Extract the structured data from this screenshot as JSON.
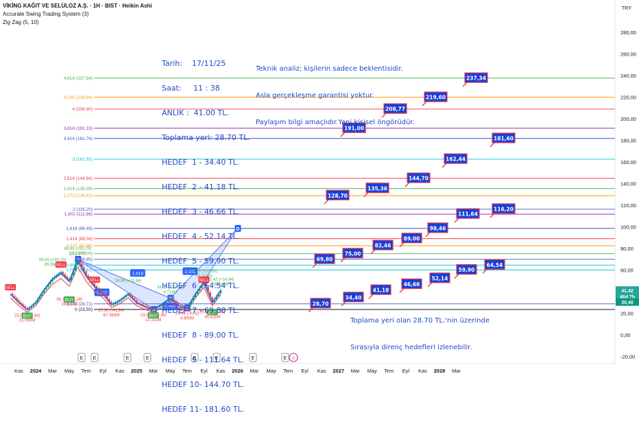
{
  "header": {
    "title": "VİKİNG KAĞIT VE SELÜLOZ A.Ş. · 1H · BIST · Heikin Ashi",
    "indicator1": "Accurate Swing Trading System (3)",
    "indicator2": "Zig Zag (5, 10)",
    "currency": "TRY"
  },
  "info_block": {
    "date": "Tarih:    17/11/25",
    "time": "Saat:     11 : 38",
    "now": "ANLIK :  41.00 TL.",
    "collect": "Toplama yeri: 28.70 TL.",
    "targets": [
      "HEDEF  1 - 34.40 TL.",
      "HEDEF  2 - 41.18 TL.",
      "HEDEF  3 - 46.66 TL.",
      "HEDEF  4 - 52.14 TL.",
      "HEDEF  5 - 59.90 TL.",
      "HEDEF  6 - 64.54 TL.",
      "HEDEF  7 - 69.80 TL.",
      "HEDEF  8 - 89.00 TL.",
      "HEDEF  9 - 111.64 TL.",
      "HEDEF 10- 144.70 TL.",
      "HEDEF 11- 181.60 TL."
    ]
  },
  "disclaimer": [
    "Teknik analiz; kişilerin sadece beklentisidir.",
    "Asla gerçekleşme garantisi yoktur.",
    "Paylaşım bilgi amaçlıdır.Yani kişisel öngörüdür."
  ],
  "bottom_note": [
    "Toplama yeri olan 28.70 TL.'nin üzerinde",
    "Sırasıyla direnç hedefleri izlenebilir."
  ],
  "chart_data": {
    "type": "line",
    "title": "VİKİNG KAĞIT VE SELÜLOZ A.Ş. · 1H · BIST · Heikin Ashi",
    "ylim": [
      -20,
      300
    ],
    "y_ticks": [
      "-20,00",
      "0,00",
      "20,00",
      "40,00",
      "60,00",
      "80,00",
      "100,00",
      "120,00",
      "140,00",
      "160,00",
      "180,00",
      "200,00",
      "220,00",
      "240,00",
      "260,00",
      "280,00"
    ],
    "x_ticks": [
      "Kas",
      "2024",
      "Mar",
      "May",
      "Tem",
      "Eyl",
      "Kas",
      "2025",
      "Mar",
      "May",
      "Tem",
      "Eyl",
      "Kas",
      "2026",
      "Mar",
      "May",
      "Tem",
      "Eyl",
      "Kas",
      "2027",
      "Mar",
      "May",
      "Tem",
      "Eyl",
      "Kas",
      "2028",
      "Mar"
    ],
    "price_labels": [
      {
        "text": "41,42",
        "value": 41.42,
        "color": "#26a69a"
      },
      {
        "text": "46d 7h",
        "value": 35.5,
        "color": "#26a69a"
      },
      {
        "text": "30,40",
        "value": 30.4,
        "color": "#089981"
      }
    ],
    "fib_levels": [
      {
        "label": "4,618 (237,54)",
        "value": 237.54,
        "color": "#4caf50"
      },
      {
        "label": "4,236 (219,84)",
        "value": 219.84,
        "color": "#ff9800"
      },
      {
        "label": "4 (208,90)",
        "value": 208.9,
        "color": "#f23645"
      },
      {
        "label": "3,618 (191,19)",
        "value": 191.19,
        "color": "#9c27b0"
      },
      {
        "label": "3,414 (181,74)",
        "value": 181.74,
        "color": "#3f51b5"
      },
      {
        "label": "3 (162,55)",
        "value": 162.55,
        "color": "#00bcd4"
      },
      {
        "label": "2,618 (144,84)",
        "value": 144.84,
        "color": "#f23645"
      },
      {
        "label": "2,414 (135,39)",
        "value": 135.39,
        "color": "#4caf50"
      },
      {
        "label": "2,272 (128,81)",
        "value": 128.81,
        "color": "#ff9800"
      },
      {
        "label": "2 (116,20)",
        "value": 116.2,
        "color": "#3f51b5"
      },
      {
        "label": "1,902 (111,66)",
        "value": 111.66,
        "color": "#9c27b0"
      },
      {
        "label": "1,618 (98,49)",
        "value": 98.49,
        "color": "#3f51b5"
      },
      {
        "label": "1,414 (89,04)",
        "value": 89.04,
        "color": "#f23645"
      },
      {
        "label": "1,272 (82,46)",
        "value": 82.46,
        "color": "#ff9800"
      },
      {
        "label": "1,13 (75,09)",
        "value": 75.09,
        "color": "#4caf50"
      },
      {
        "label": "1 (69,85)",
        "value": 69.85,
        "color": "#3f51b5"
      },
      {
        "label": "0,886 (64,57)",
        "value": 64.57,
        "color": "#00bcd4"
      },
      {
        "label": "0,786 (59,93)",
        "value": 59.93,
        "color": "#00bcd4"
      },
      {
        "label": "0,113 (28,71)",
        "value": 28.71,
        "color": "#3f51b5"
      },
      {
        "label": "0 (23,50)",
        "value": 23.5,
        "color": "#131722"
      }
    ],
    "targets": [
      {
        "label": "28,70",
        "value": 28.7
      },
      {
        "label": "34,40",
        "value": 34.4
      },
      {
        "label": "41,18",
        "value": 41.18
      },
      {
        "label": "46,66",
        "value": 46.66
      },
      {
        "label": "52,14",
        "value": 52.14
      },
      {
        "label": "59,90",
        "value": 59.9
      },
      {
        "label": "64,54",
        "value": 64.54
      },
      {
        "label": "69,80",
        "value": 69.8
      },
      {
        "label": "75,00",
        "value": 75.0
      },
      {
        "label": "82,46",
        "value": 82.46
      },
      {
        "label": "89,00",
        "value": 89.0
      },
      {
        "label": "98,46",
        "value": 98.46
      },
      {
        "label": "111,64",
        "value": 111.64
      },
      {
        "label": "116,20",
        "value": 116.2
      },
      {
        "label": "128,70",
        "value": 128.7
      },
      {
        "label": "135,36",
        "value": 135.36
      },
      {
        "label": "144,70",
        "value": 144.7
      },
      {
        "label": "162,44",
        "value": 162.44
      },
      {
        "label": "181,60",
        "value": 181.6
      },
      {
        "label": "191,00",
        "value": 191.0
      },
      {
        "label": "208,77",
        "value": 208.77
      },
      {
        "label": "219,60",
        "value": 219.6
      },
      {
        "label": "237,34",
        "value": 237.34
      }
    ],
    "price_series": [
      {
        "x": "2023-10",
        "y": 38
      },
      {
        "x": "2023-11",
        "y": 30
      },
      {
        "x": "2023-12",
        "y": 23.2
      },
      {
        "x": "2024-01",
        "y": 30
      },
      {
        "x": "2024-02",
        "y": 42
      },
      {
        "x": "2024-03",
        "y": 52
      },
      {
        "x": "2024-04",
        "y": 58
      },
      {
        "x": "2024-05",
        "y": 50
      },
      {
        "x": "2024-06",
        "y": 69.85
      },
      {
        "x": "2024-07",
        "y": 55
      },
      {
        "x": "2024-08",
        "y": 45
      },
      {
        "x": "2024-09",
        "y": 38
      },
      {
        "x": "2024-10",
        "y": 28
      },
      {
        "x": "2024-11",
        "y": 32
      },
      {
        "x": "2024-12",
        "y": 38
      },
      {
        "x": "2025-01",
        "y": 30
      },
      {
        "x": "2025-02",
        "y": 26
      },
      {
        "x": "2025-03",
        "y": 23.5
      },
      {
        "x": "2025-04",
        "y": 28
      },
      {
        "x": "2025-05",
        "y": 34
      },
      {
        "x": "2025-06",
        "y": 27
      },
      {
        "x": "2025-07",
        "y": 25
      },
      {
        "x": "2025-08",
        "y": 38
      },
      {
        "x": "2025-09",
        "y": 48.78
      },
      {
        "x": "2025-10",
        "y": 30
      },
      {
        "x": "2025-11",
        "y": 41.42
      }
    ],
    "pattern_points": [
      {
        "label": "X",
        "x": "2024-06",
        "y": 69.85
      },
      {
        "label": "A",
        "x": "2025-03",
        "y": 23.5
      },
      {
        "label": "B",
        "x": "2025-05",
        "y": 34
      },
      {
        "label": "C",
        "x": "2025-07",
        "y": 24.98
      },
      {
        "label": "D",
        "x": "2026-01",
        "y": 98.49
      }
    ],
    "pattern_ratios": [
      "1,618",
      "0,227",
      "0,659",
      "2,151"
    ],
    "swing_labels": [
      {
        "text": "23,20 (-27,84)",
        "sub": "31.959M",
        "color": "#f23645",
        "x": "2023-12",
        "y": 23.2,
        "above": false
      },
      {
        "text": "38,16 (-21,24)",
        "sub": "26.632M",
        "color": "#f23645",
        "x": "2024-05",
        "y": 38.16,
        "above": false
      },
      {
        "text": "27,90 (-41,94)",
        "sub": "67.363M",
        "color": "#f23645",
        "x": "2024-10",
        "y": 27.9,
        "above": false
      },
      {
        "text": "23,50 (-16,36)",
        "sub": "10.153M",
        "color": "#f23645",
        "x": "2025-03",
        "y": 23.5,
        "above": false
      },
      {
        "text": "24,98 (-9,02)",
        "sub": "4.900M",
        "color": "#f23645",
        "x": "2025-07",
        "y": 24.98,
        "above": false
      },
      {
        "text": "26,48 (-22,30)",
        "sub": "44.826M",
        "color": "#f23645",
        "x": "2025-10",
        "y": 26.48,
        "above": false
      },
      {
        "text": "59,40 (+36,20)",
        "sub": "95.584M",
        "color": "#4caf50",
        "x": "2024-03",
        "y": 59.4,
        "above": true
      },
      {
        "text": "69,85 (+31,70)",
        "sub": "30.191M",
        "color": "#4caf50",
        "x": "2024-06",
        "y": 69.85,
        "above": true
      },
      {
        "text": "39,86 (+11,96)",
        "sub": "",
        "color": "#4caf50",
        "x": "2024-12",
        "y": 39.86,
        "above": true
      },
      {
        "text": "34,00 (+10,50)",
        "sub": "4.714M",
        "color": "#4caf50",
        "x": "2025-05",
        "y": 34,
        "above": true
      },
      {
        "text": "48,78 (+23,80)",
        "sub": "25.424M",
        "color": "#4caf50",
        "x": "2025-09",
        "y": 48.78,
        "above": true
      },
      {
        "text": "41,42 (+14,94)",
        "sub": "36.422M",
        "color": "#4caf50",
        "x": "2025-11",
        "y": 41.42,
        "above": true
      }
    ],
    "signals": [
      {
        "text": "SELL",
        "x": "2023-10",
        "y": 38,
        "type": "sell"
      },
      {
        "text": "BUY",
        "x": "2023-12",
        "y": 23.2,
        "type": "buy"
      },
      {
        "text": "SELL",
        "x": "2024-04",
        "y": 59,
        "type": "sell"
      },
      {
        "text": "BUY",
        "x": "2024-05",
        "y": 38.16,
        "type": "buy"
      },
      {
        "text": "SELL",
        "x": "2024-08",
        "y": 45,
        "type": "sell"
      },
      {
        "text": "BUY",
        "x": "2025-03",
        "y": 23.5,
        "type": "buy"
      },
      {
        "text": "SELL",
        "x": "2025-09",
        "y": 45,
        "type": "sell"
      },
      {
        "text": "BUY",
        "x": "2025-10",
        "y": 26.5,
        "type": "buy"
      }
    ],
    "event_markers": [
      "E",
      "E",
      "E",
      "E",
      "E",
      "E",
      "E",
      "E"
    ],
    "colors": {
      "target_box": "#1a3fd8",
      "target_border": "#e63946",
      "up": "#089981",
      "down": "#f23645",
      "zigzag": "#2962ff",
      "note_blue": "#2148c9"
    }
  }
}
